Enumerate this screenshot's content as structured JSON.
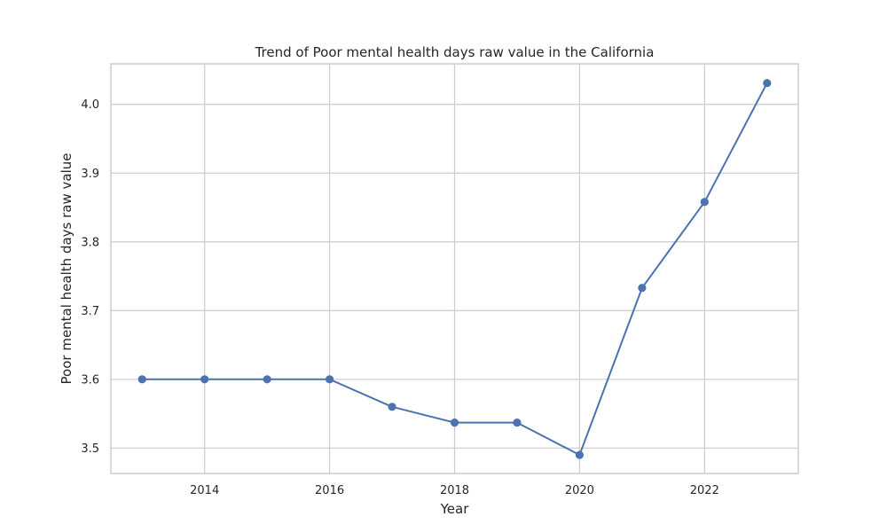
{
  "chart_data": {
    "type": "line",
    "title": "Trend of Poor mental health days raw value in the California",
    "xlabel": "Year",
    "ylabel": "Poor mental health days raw value",
    "x": [
      2013,
      2014,
      2015,
      2016,
      2017,
      2018,
      2019,
      2020,
      2021,
      2022,
      2023
    ],
    "series": [
      {
        "values": [
          3.6,
          3.6,
          3.6,
          3.6,
          3.56,
          3.537,
          3.537,
          3.49,
          3.733,
          3.858,
          4.031
        ],
        "color": "#4c72b0"
      }
    ],
    "xlim": [
      2012.5,
      2023.5
    ],
    "ylim": [
      3.463,
      4.059
    ],
    "xticks": [
      "2014",
      "2016",
      "2018",
      "2020",
      "2022"
    ],
    "yticks": [
      "3.5",
      "3.6",
      "3.7",
      "3.8",
      "3.9",
      "4.0"
    ],
    "grid": true,
    "marker": "circle"
  }
}
